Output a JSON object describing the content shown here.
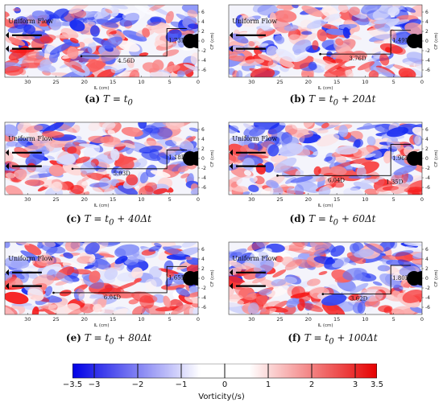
{
  "legend": {
    "uniform_flow": "Uniform Flow"
  },
  "axes": {
    "x_label": "IL (cm)",
    "y_label": "CF (cm)",
    "x_ticks": [
      "30",
      "25",
      "20",
      "15",
      "10",
      "5",
      "0"
    ],
    "y_ticks": [
      "6",
      "4",
      "2",
      "0",
      "-2",
      "-4",
      "-6"
    ]
  },
  "panels": [
    {
      "letter": "(a)",
      "time": "T = t",
      "sub": "0",
      "suffix": "",
      "length_label": "4.56D",
      "height_label": "1.73D",
      "L": 4.56,
      "H": 1.73
    },
    {
      "letter": "(b)",
      "time": "T = t",
      "sub": "0",
      "suffix": " + 20Δt",
      "length_label": "3.76D",
      "height_label": "1.49D",
      "L": 3.76,
      "H": 1.49
    },
    {
      "letter": "(c)",
      "time": "T = t",
      "sub": "0",
      "suffix": " + 40Δt",
      "length_label": "5.03D",
      "height_label": "1.18D",
      "L": 5.03,
      "H": 1.18
    },
    {
      "letter": "(d)",
      "time": "T = t",
      "sub": "0",
      "suffix": " + 60Δt",
      "length_label": "6.04D",
      "height_label": "1.96D",
      "extra_label": "1.35D",
      "L": 6.04,
      "H": 1.96
    },
    {
      "letter": "(e)",
      "time": "T = t",
      "sub": "0",
      "suffix": " + 80Δt",
      "length_label": "6.04D",
      "height_label": "1.65D",
      "L": 6.04,
      "H": 1.65
    },
    {
      "letter": "(f)",
      "time": "T = t",
      "sub": "0",
      "suffix": " + 100Δt",
      "length_label": "3.62D",
      "height_label": "1.80D",
      "L": 3.62,
      "H": 1.8
    }
  ],
  "colorbar": {
    "title": "Vorticity(/s)",
    "ticks": [
      "-3.5",
      "-3",
      "-2",
      "-1",
      "0",
      "1",
      "2",
      "3",
      "3.5"
    ],
    "min": -3.5,
    "max": 3.5,
    "neg_color": "#0000e6",
    "pos_color": "#e60000"
  }
}
